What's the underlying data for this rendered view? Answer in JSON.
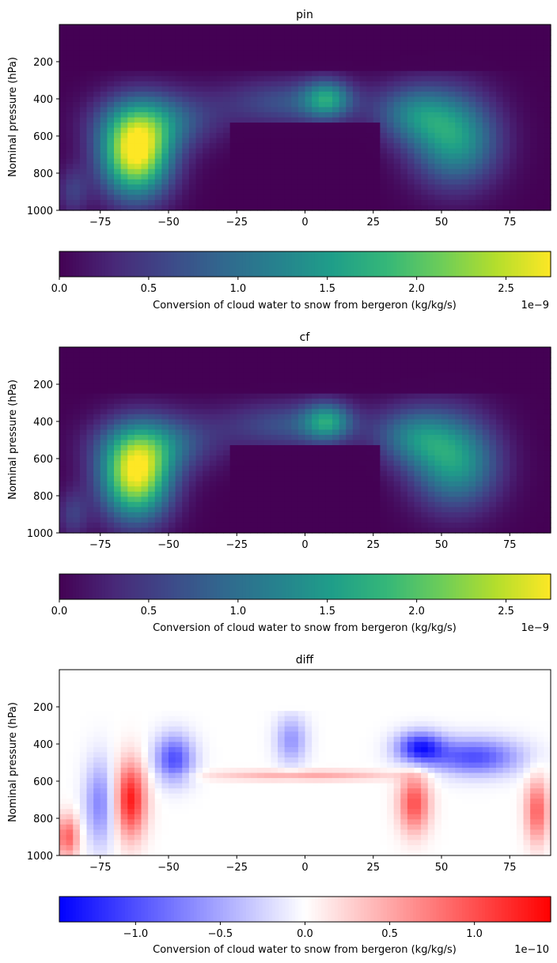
{
  "chart_data": [
    {
      "type": "heatmap",
      "title": "pin",
      "ylabel": "Nominal pressure (hPa)",
      "xlim": [
        -90,
        90
      ],
      "ylim": [
        1000,
        0
      ],
      "xticks": [
        -75,
        -50,
        -25,
        0,
        25,
        50,
        75
      ],
      "xtick_labels": [
        "−75",
        "−50",
        "−25",
        "0",
        "25",
        "50",
        "75"
      ],
      "yticks": [
        200,
        400,
        600,
        800,
        1000
      ],
      "ytick_labels": [
        "200",
        "400",
        "600",
        "800",
        "1000"
      ],
      "colormap": "viridis",
      "colorbar": {
        "label": "Conversion of cloud water to snow from bergeron (kg/kg/s)",
        "range": [
          0,
          2.75
        ],
        "ticks": [
          0,
          0.5,
          1.0,
          1.5,
          2.0,
          2.5
        ],
        "tick_labels": [
          "0.0",
          "0.5",
          "1.0",
          "1.5",
          "2.0",
          "2.5"
        ],
        "offset_label": "1e−9",
        "orientation": "horizontal"
      },
      "features": [
        {
          "region": "southern lower-tropospheric maximum",
          "lat": [
            -72,
            -45
          ],
          "pressure_hPa": [
            450,
            950
          ],
          "peak_value": 2.75
        },
        {
          "region": "northern mid-latitude band",
          "lat": [
            35,
            75
          ],
          "pressure_hPa": [
            400,
            900
          ],
          "peak_value": 1.5
        },
        {
          "region": "tropical upper layer",
          "lat": [
            -30,
            25
          ],
          "pressure_hPa": [
            280,
            520
          ],
          "peak_value": 1.3
        }
      ]
    },
    {
      "type": "heatmap",
      "title": "cf",
      "ylabel": "Nominal pressure (hPa)",
      "xlim": [
        -90,
        90
      ],
      "ylim": [
        1000,
        0
      ],
      "xticks": [
        -75,
        -50,
        -25,
        0,
        25,
        50,
        75
      ],
      "xtick_labels": [
        "−75",
        "−50",
        "−25",
        "0",
        "25",
        "50",
        "75"
      ],
      "yticks": [
        200,
        400,
        600,
        800,
        1000
      ],
      "ytick_labels": [
        "200",
        "400",
        "600",
        "800",
        "1000"
      ],
      "colormap": "viridis",
      "colorbar": {
        "label": "Conversion of cloud water to snow from bergeron (kg/kg/s)",
        "range": [
          0,
          2.75
        ],
        "ticks": [
          0,
          0.5,
          1.0,
          1.5,
          2.0,
          2.5
        ],
        "tick_labels": [
          "0.0",
          "0.5",
          "1.0",
          "1.5",
          "2.0",
          "2.5"
        ],
        "offset_label": "1e−9",
        "orientation": "horizontal"
      },
      "features": [
        {
          "region": "southern lower-tropospheric maximum",
          "lat": [
            -72,
            -45
          ],
          "pressure_hPa": [
            450,
            950
          ],
          "peak_value": 2.6
        },
        {
          "region": "northern mid-latitude band",
          "lat": [
            35,
            75
          ],
          "pressure_hPa": [
            400,
            900
          ],
          "peak_value": 1.5
        },
        {
          "region": "tropical upper layer",
          "lat": [
            -30,
            25
          ],
          "pressure_hPa": [
            280,
            520
          ],
          "peak_value": 1.4
        }
      ]
    },
    {
      "type": "heatmap",
      "title": "diff",
      "ylabel": "Nominal pressure (hPa)",
      "xlim": [
        -90,
        90
      ],
      "ylim": [
        1000,
        0
      ],
      "xticks": [
        -75,
        -50,
        -25,
        0,
        25,
        50,
        75
      ],
      "xtick_labels": [
        "−75",
        "−50",
        "−25",
        "0",
        "25",
        "50",
        "75"
      ],
      "yticks": [
        200,
        400,
        600,
        800,
        1000
      ],
      "ytick_labels": [
        "200",
        "400",
        "600",
        "800",
        "1000"
      ],
      "colormap": "bwr",
      "colorbar": {
        "label": "Conversion of cloud water to snow from bergeron (kg/kg/s)",
        "range": [
          -1.45,
          1.45
        ],
        "ticks": [
          -1.0,
          -0.5,
          0.0,
          0.5,
          1.0
        ],
        "tick_labels": [
          "−1.0",
          "−0.5",
          "0.0",
          "0.5",
          "1.0"
        ],
        "offset_label": "1e−10",
        "orientation": "horizontal"
      },
      "features": [
        {
          "region": "positive southern column",
          "lat": [
            -68,
            -58
          ],
          "pressure_hPa": [
            550,
            900
          ],
          "value": 1.2
        },
        {
          "region": "negative southern mid-level",
          "lat": [
            -55,
            -40
          ],
          "pressure_hPa": [
            380,
            620
          ],
          "value": -1.0
        },
        {
          "region": "negative northern upper band",
          "lat": [
            33,
            75
          ],
          "pressure_hPa": [
            380,
            520
          ],
          "value": -1.3
        },
        {
          "region": "positive northern lower column",
          "lat": [
            35,
            45
          ],
          "pressure_hPa": [
            600,
            850
          ],
          "value": 0.9
        }
      ]
    }
  ]
}
